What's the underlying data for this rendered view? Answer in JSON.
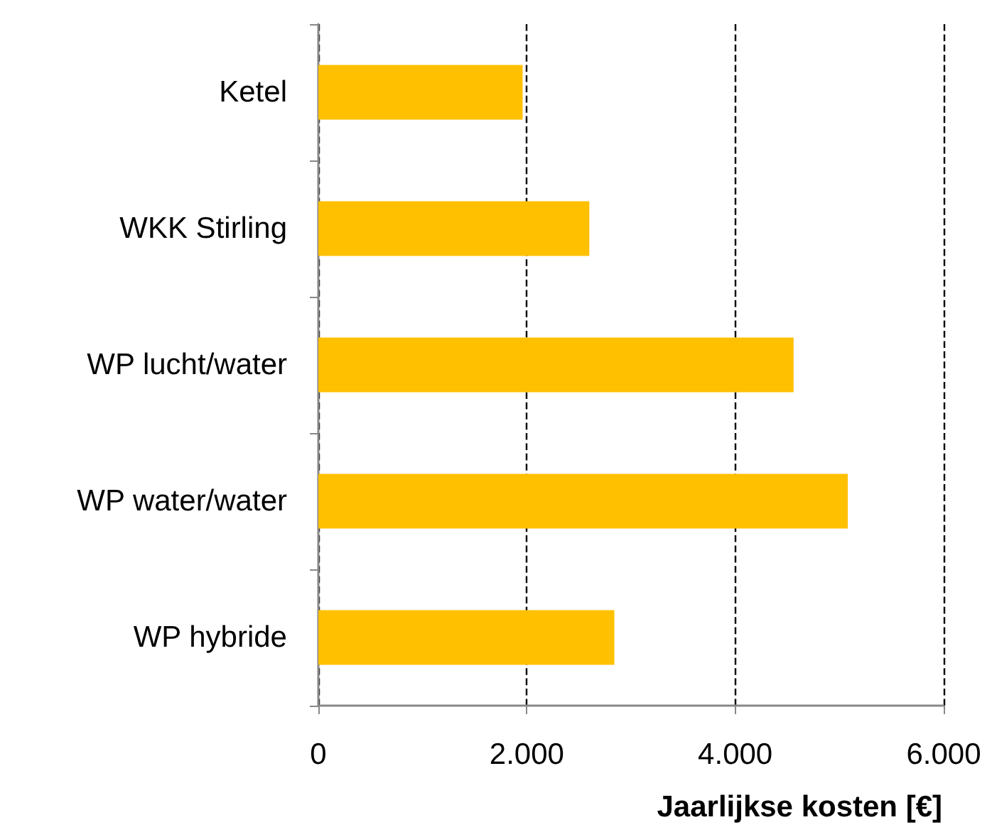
{
  "chart_data": {
    "type": "bar",
    "orientation": "horizontal",
    "xlabel": "Jaarlijkse kosten [€]",
    "categories": [
      "Ketel",
      "WKK Stirling",
      "WP lucht/water",
      "WP water/water",
      "WP hybride"
    ],
    "values": [
      1960,
      2600,
      4560,
      5080,
      2840
    ],
    "color": "#ffc000",
    "xlim": [
      0,
      6000
    ],
    "xticks": [
      0,
      {
        "value": 2000,
        "label": "2.000"
      },
      {
        "value": 4000,
        "label": "4.000"
      },
      {
        "value": 6000,
        "label": "6.000"
      }
    ],
    "grid": "x",
    "line_style": "dashed"
  }
}
